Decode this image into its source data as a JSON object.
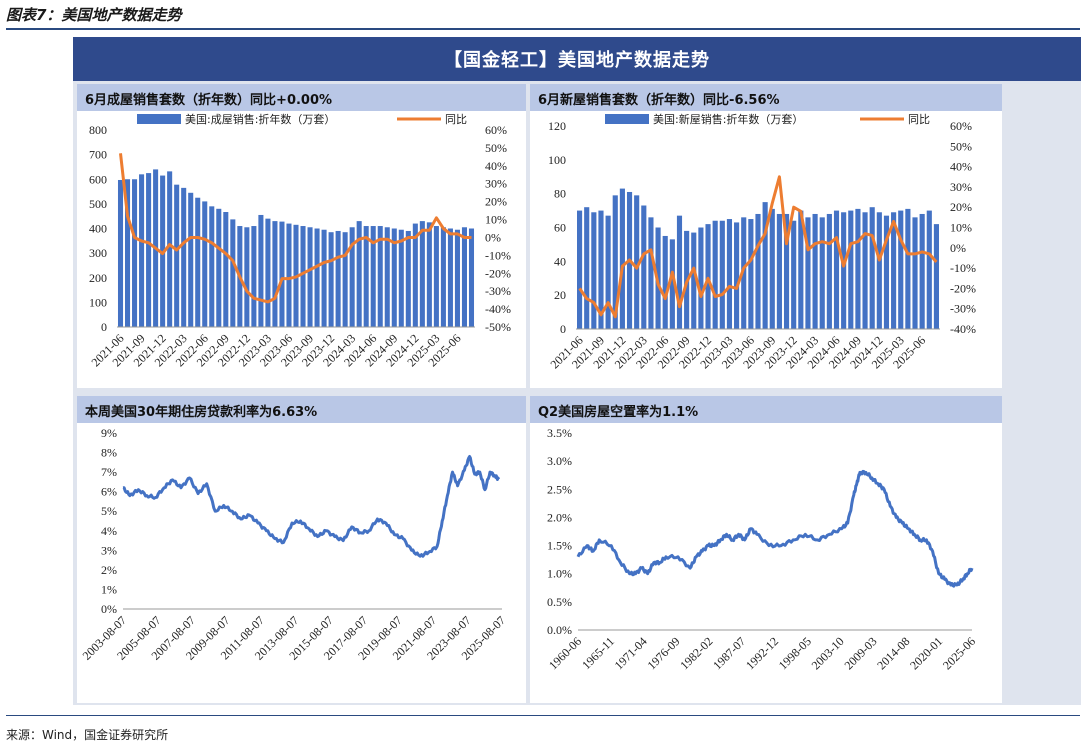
{
  "figure_title": "图表7：美国地产数据走势",
  "banner": "【国金轻工】美国地产数据走势",
  "source": "来源：Wind，国金证券研究所",
  "colors": {
    "bar": "#4472c4",
    "line_orange": "#ed7d31",
    "line_blue": "#4472c4"
  },
  "chart_data": [
    {
      "type": "bar",
      "panel_title": "6月成屋销售套数（折年数）同比+0.00%",
      "title": "6月成屋销售套数（折年数）同比+0.00%",
      "legend": [
        "美国:成屋销售:折年数（万套）",
        "同比"
      ],
      "x_tick_labels": [
        "2021-06",
        "2021-09",
        "2021-12",
        "2022-03",
        "2022-06",
        "2022-09",
        "2022-12",
        "2023-03",
        "2023-06",
        "2023-09",
        "2023-12",
        "2024-03",
        "2024-06",
        "2024-09",
        "2024-12",
        "2025-03",
        "2025-06"
      ],
      "y_left": {
        "ticks": [
          "800",
          "700",
          "600",
          "500",
          "400",
          "300",
          "200",
          "100",
          "0"
        ],
        "ylim": [
          0,
          800
        ]
      },
      "y_right": {
        "ticks": [
          "60%",
          "50%",
          "40%",
          "30%",
          "20%",
          "10%",
          "0%",
          "-10%",
          "-20%",
          "-30%",
          "-40%",
          "-50%"
        ],
        "ylim": [
          -50,
          60
        ]
      },
      "series": [
        {
          "name": "美国:成屋销售:折年数（万套）",
          "type": "bar",
          "values": [
            597,
            600,
            600,
            620,
            625,
            640,
            615,
            632,
            578,
            565,
            545,
            525,
            510,
            490,
            480,
            467,
            437,
            410,
            405,
            410,
            455,
            440,
            430,
            428,
            420,
            415,
            410,
            405,
            400,
            395,
            385,
            390,
            385,
            405,
            430,
            410,
            410,
            410,
            405,
            400,
            395,
            390,
            420,
            430,
            425,
            410,
            405,
            400,
            395,
            405,
            400
          ]
        },
        {
          "name": "同比",
          "type": "line",
          "values": [
            47,
            12,
            0,
            -2,
            -3,
            -6,
            -9,
            -4,
            -7,
            -3,
            0,
            0,
            -1,
            -3,
            -6,
            -9,
            -13,
            -22,
            -30,
            -34,
            -35,
            -36,
            -34,
            -23,
            -23,
            -22,
            -20,
            -18,
            -16,
            -14,
            -13,
            -11,
            -10,
            -4,
            -1,
            0,
            -3,
            -1,
            -1,
            -3,
            -2,
            0,
            0,
            4,
            4,
            11,
            5,
            2,
            2,
            0,
            0
          ]
        }
      ]
    },
    {
      "type": "bar",
      "panel_title": "6月新屋销售套数（折年数）同比-6.56%",
      "title": "6月新屋销售套数（折年数）同比-6.56%",
      "legend": [
        "美国:新屋销售:折年数（万套）",
        "同比"
      ],
      "x_tick_labels": [
        "2021-06",
        "2021-09",
        "2021-12",
        "2022-03",
        "2022-06",
        "2022-09",
        "2022-12",
        "2023-03",
        "2023-06",
        "2023-09",
        "2023-12",
        "2024-03",
        "2024-06",
        "2024-09",
        "2024-12",
        "2025-03",
        "2025-06"
      ],
      "y_left": {
        "ticks": [
          "120",
          "100",
          "80",
          "60",
          "40",
          "20",
          "0"
        ],
        "ylim": [
          0,
          120
        ]
      },
      "y_right": {
        "ticks": [
          "60%",
          "50%",
          "40%",
          "30%",
          "20%",
          "10%",
          "0%",
          "-10%",
          "-20%",
          "-30%",
          "-40%"
        ],
        "ylim": [
          -40,
          60
        ]
      },
      "series": [
        {
          "name": "美国:新屋销售:折年数（万套）",
          "type": "bar",
          "values": [
            70,
            72,
            69,
            70,
            67,
            79,
            83,
            81,
            79,
            73,
            66,
            60,
            55,
            53,
            67,
            58,
            57,
            60,
            62,
            64,
            64,
            65,
            63,
            66,
            65,
            68,
            75,
            71,
            68,
            68,
            64,
            70,
            66,
            68,
            66,
            68,
            70,
            69,
            70,
            71,
            69,
            72,
            69,
            67,
            69,
            70,
            71,
            66,
            68,
            70,
            62
          ]
        },
        {
          "name": "同比",
          "type": "line",
          "values": [
            -20,
            -25,
            -27,
            -33,
            -27,
            -34,
            -9,
            -6,
            -10,
            -3,
            -1,
            -18,
            -25,
            -12,
            -29,
            -17,
            -10,
            -24,
            -15,
            -24,
            -23,
            -19,
            -20,
            -10,
            -6,
            1,
            7,
            22,
            35,
            2,
            20,
            18,
            -1,
            2,
            3,
            2,
            5,
            -9,
            2,
            3,
            7,
            6,
            -6,
            4,
            13,
            4,
            -3,
            -3,
            -2,
            -3,
            -7
          ]
        }
      ]
    },
    {
      "type": "line",
      "panel_title": "本周美国30年期住房贷款利率为6.63%",
      "title": "本周美国30年期住房贷款利率为6.63%",
      "x_tick_labels": [
        "2003-08-07",
        "2005-08-07",
        "2007-08-07",
        "2009-08-07",
        "2011-08-07",
        "2013-08-07",
        "2015-08-07",
        "2017-08-07",
        "2019-08-07",
        "2021-08-07",
        "2023-08-07",
        "2025-08-07"
      ],
      "y_left": {
        "ticks": [
          "9%",
          "8%",
          "7%",
          "6%",
          "5%",
          "4%",
          "3%",
          "2%",
          "1%",
          "0%"
        ],
        "ylim": [
          0,
          9
        ]
      },
      "x_range": [
        2003.6,
        2025.8
      ],
      "series": [
        {
          "name": "美国30年期住房贷款利率",
          "x": [
            2003.6,
            2004.0,
            2004.5,
            2005.0,
            2005.5,
            2006.0,
            2006.5,
            2007.0,
            2007.5,
            2008.0,
            2008.5,
            2009.0,
            2009.5,
            2010.0,
            2010.5,
            2011.0,
            2011.5,
            2012.0,
            2012.5,
            2013.0,
            2013.5,
            2014.0,
            2014.5,
            2015.0,
            2015.5,
            2016.0,
            2016.5,
            2017.0,
            2017.5,
            2018.0,
            2018.5,
            2019.0,
            2019.5,
            2020.0,
            2020.5,
            2021.0,
            2021.5,
            2022.0,
            2022.3,
            2022.6,
            2022.9,
            2023.2,
            2023.6,
            2023.9,
            2024.2,
            2024.5,
            2024.8,
            2025.1,
            2025.4,
            2025.6
          ],
          "values": [
            6.2,
            5.8,
            6.1,
            5.8,
            5.7,
            6.2,
            6.6,
            6.2,
            6.7,
            5.9,
            6.4,
            5.0,
            5.3,
            5.0,
            4.6,
            4.8,
            4.4,
            4.0,
            3.6,
            3.4,
            4.4,
            4.5,
            4.1,
            3.7,
            4.0,
            3.7,
            3.5,
            4.2,
            3.9,
            4.0,
            4.6,
            4.4,
            3.8,
            3.6,
            3.0,
            2.7,
            2.9,
            3.2,
            4.5,
            5.8,
            7.0,
            6.3,
            7.1,
            7.8,
            6.9,
            7.0,
            6.1,
            7.0,
            6.8,
            6.63
          ]
        }
      ]
    },
    {
      "type": "line",
      "panel_title": "Q2美国房屋空置率为1.1%",
      "title": "Q2美国房屋空置率为1.1%",
      "x_tick_labels": [
        "1960-06",
        "1965-11",
        "1971-04",
        "1976-09",
        "1982-02",
        "1987-07",
        "1992-12",
        "1998-05",
        "2003-10",
        "2009-03",
        "2014-08",
        "2020-01",
        "2025-06"
      ],
      "y_left": {
        "ticks": [
          "3.5%",
          "3.0%",
          "2.5%",
          "2.0%",
          "1.5%",
          "1.0%",
          "0.5%",
          "0.0%"
        ],
        "ylim": [
          0,
          3.5
        ]
      },
      "x_range": [
        1960.5,
        2025.5
      ],
      "series": [
        {
          "name": "美国房屋空置率",
          "x": [
            1960.5,
            1962,
            1963,
            1964,
            1966,
            1967.5,
            1969,
            1970,
            1971,
            1972,
            1973,
            1974,
            1975,
            1977,
            1979,
            1980,
            1981,
            1982,
            1983,
            1984,
            1985,
            1986,
            1987,
            1988,
            1989,
            1990,
            1992,
            1994,
            1996,
            1998,
            2000,
            2002,
            2004,
            2005,
            2006,
            2006.5,
            2007,
            2008,
            2009,
            2010,
            2011,
            2012,
            2013,
            2014,
            2015,
            2016,
            2017,
            2018,
            2019,
            2020,
            2021,
            2022,
            2023,
            2024,
            2024.7,
            2025.5
          ],
          "values": [
            1.3,
            1.5,
            1.4,
            1.6,
            1.5,
            1.2,
            1.0,
            1.0,
            1.1,
            1.0,
            1.2,
            1.2,
            1.3,
            1.3,
            1.1,
            1.3,
            1.4,
            1.5,
            1.5,
            1.6,
            1.7,
            1.6,
            1.7,
            1.6,
            1.8,
            1.7,
            1.5,
            1.5,
            1.6,
            1.7,
            1.6,
            1.7,
            1.8,
            1.9,
            2.4,
            2.6,
            2.8,
            2.8,
            2.7,
            2.6,
            2.5,
            2.2,
            2.0,
            1.9,
            1.8,
            1.7,
            1.6,
            1.6,
            1.4,
            1.0,
            0.9,
            0.8,
            0.8,
            0.9,
            1.0,
            1.1
          ]
        }
      ]
    }
  ]
}
